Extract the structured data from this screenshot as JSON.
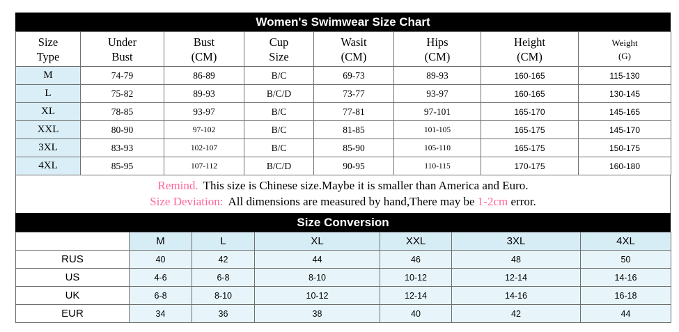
{
  "size_chart": {
    "title": "Women's Swimwear Size Chart",
    "headers": [
      {
        "line1": "Size",
        "line2": "Type"
      },
      {
        "line1": "Under",
        "line2": "Bust"
      },
      {
        "line1": "Bust",
        "line2": "(CM)"
      },
      {
        "line1": "Cup",
        "line2": "Size"
      },
      {
        "line1": "Wasit",
        "line2": "(CM)"
      },
      {
        "line1": "Hips",
        "line2": "(CM)"
      },
      {
        "line1": "Height",
        "line2": "(CM)"
      },
      {
        "line1": "Weight",
        "line2": "(G)"
      }
    ],
    "rows": [
      {
        "size": "M",
        "values": [
          "74-79",
          "86-89",
          "B/C",
          "69-73",
          "89-93",
          "160-165",
          "115-130"
        ]
      },
      {
        "size": "L",
        "values": [
          "75-82",
          "89-93",
          "B/C/D",
          "73-77",
          "93-97",
          "160-165",
          "130-145"
        ]
      },
      {
        "size": "XL",
        "values": [
          "78-85",
          "93-97",
          "B/C",
          "77-81",
          "97-101",
          "165-170",
          "145-165"
        ]
      },
      {
        "size": "XXL",
        "values": [
          "80-90",
          "97-102",
          "B/C",
          "81-85",
          "101-105",
          "165-175",
          "145-170"
        ]
      },
      {
        "size": "3XL",
        "values": [
          "83-93",
          "102-107",
          "B/C",
          "85-90",
          "105-110",
          "165-175",
          "150-175"
        ]
      },
      {
        "size": "4XL",
        "values": [
          "85-95",
          "107-112",
          "B/C/D",
          "90-95",
          "110-115",
          "170-175",
          "160-180"
        ]
      }
    ]
  },
  "remind": {
    "label": "Remind.",
    "text": "This size is Chinese size.Maybe it is smaller than America and Euro.",
    "deviation_label": "Size Deviation:",
    "deviation_text_a": "All dimensions are measured by hand,There may be",
    "deviation_highlight": "1-2cm",
    "deviation_text_b": "error."
  },
  "conversion": {
    "title": "Size Conversion",
    "columns": [
      "M",
      "L",
      "XL",
      "XXL",
      "3XL",
      "4XL"
    ],
    "rows": [
      {
        "label": "RUS",
        "values": [
          "40",
          "42",
          "44",
          "46",
          "48",
          "50"
        ]
      },
      {
        "label": "US",
        "values": [
          "4-6",
          "6-8",
          "8-10",
          "10-12",
          "12-14",
          "14-16"
        ]
      },
      {
        "label": "UK",
        "values": [
          "6-8",
          "8-10",
          "10-12",
          "12-14",
          "14-16",
          "16-18"
        ]
      },
      {
        "label": "EUR",
        "values": [
          "34",
          "36",
          "38",
          "40",
          "42",
          "44"
        ]
      }
    ]
  },
  "colors": {
    "header_bar": "#000000",
    "accent_pink": "#ff6699",
    "size_column_tint": "#d9eef6",
    "conversion_header_tint": "#d7edf6",
    "conversion_cell_tint": "#e7f5fa"
  }
}
